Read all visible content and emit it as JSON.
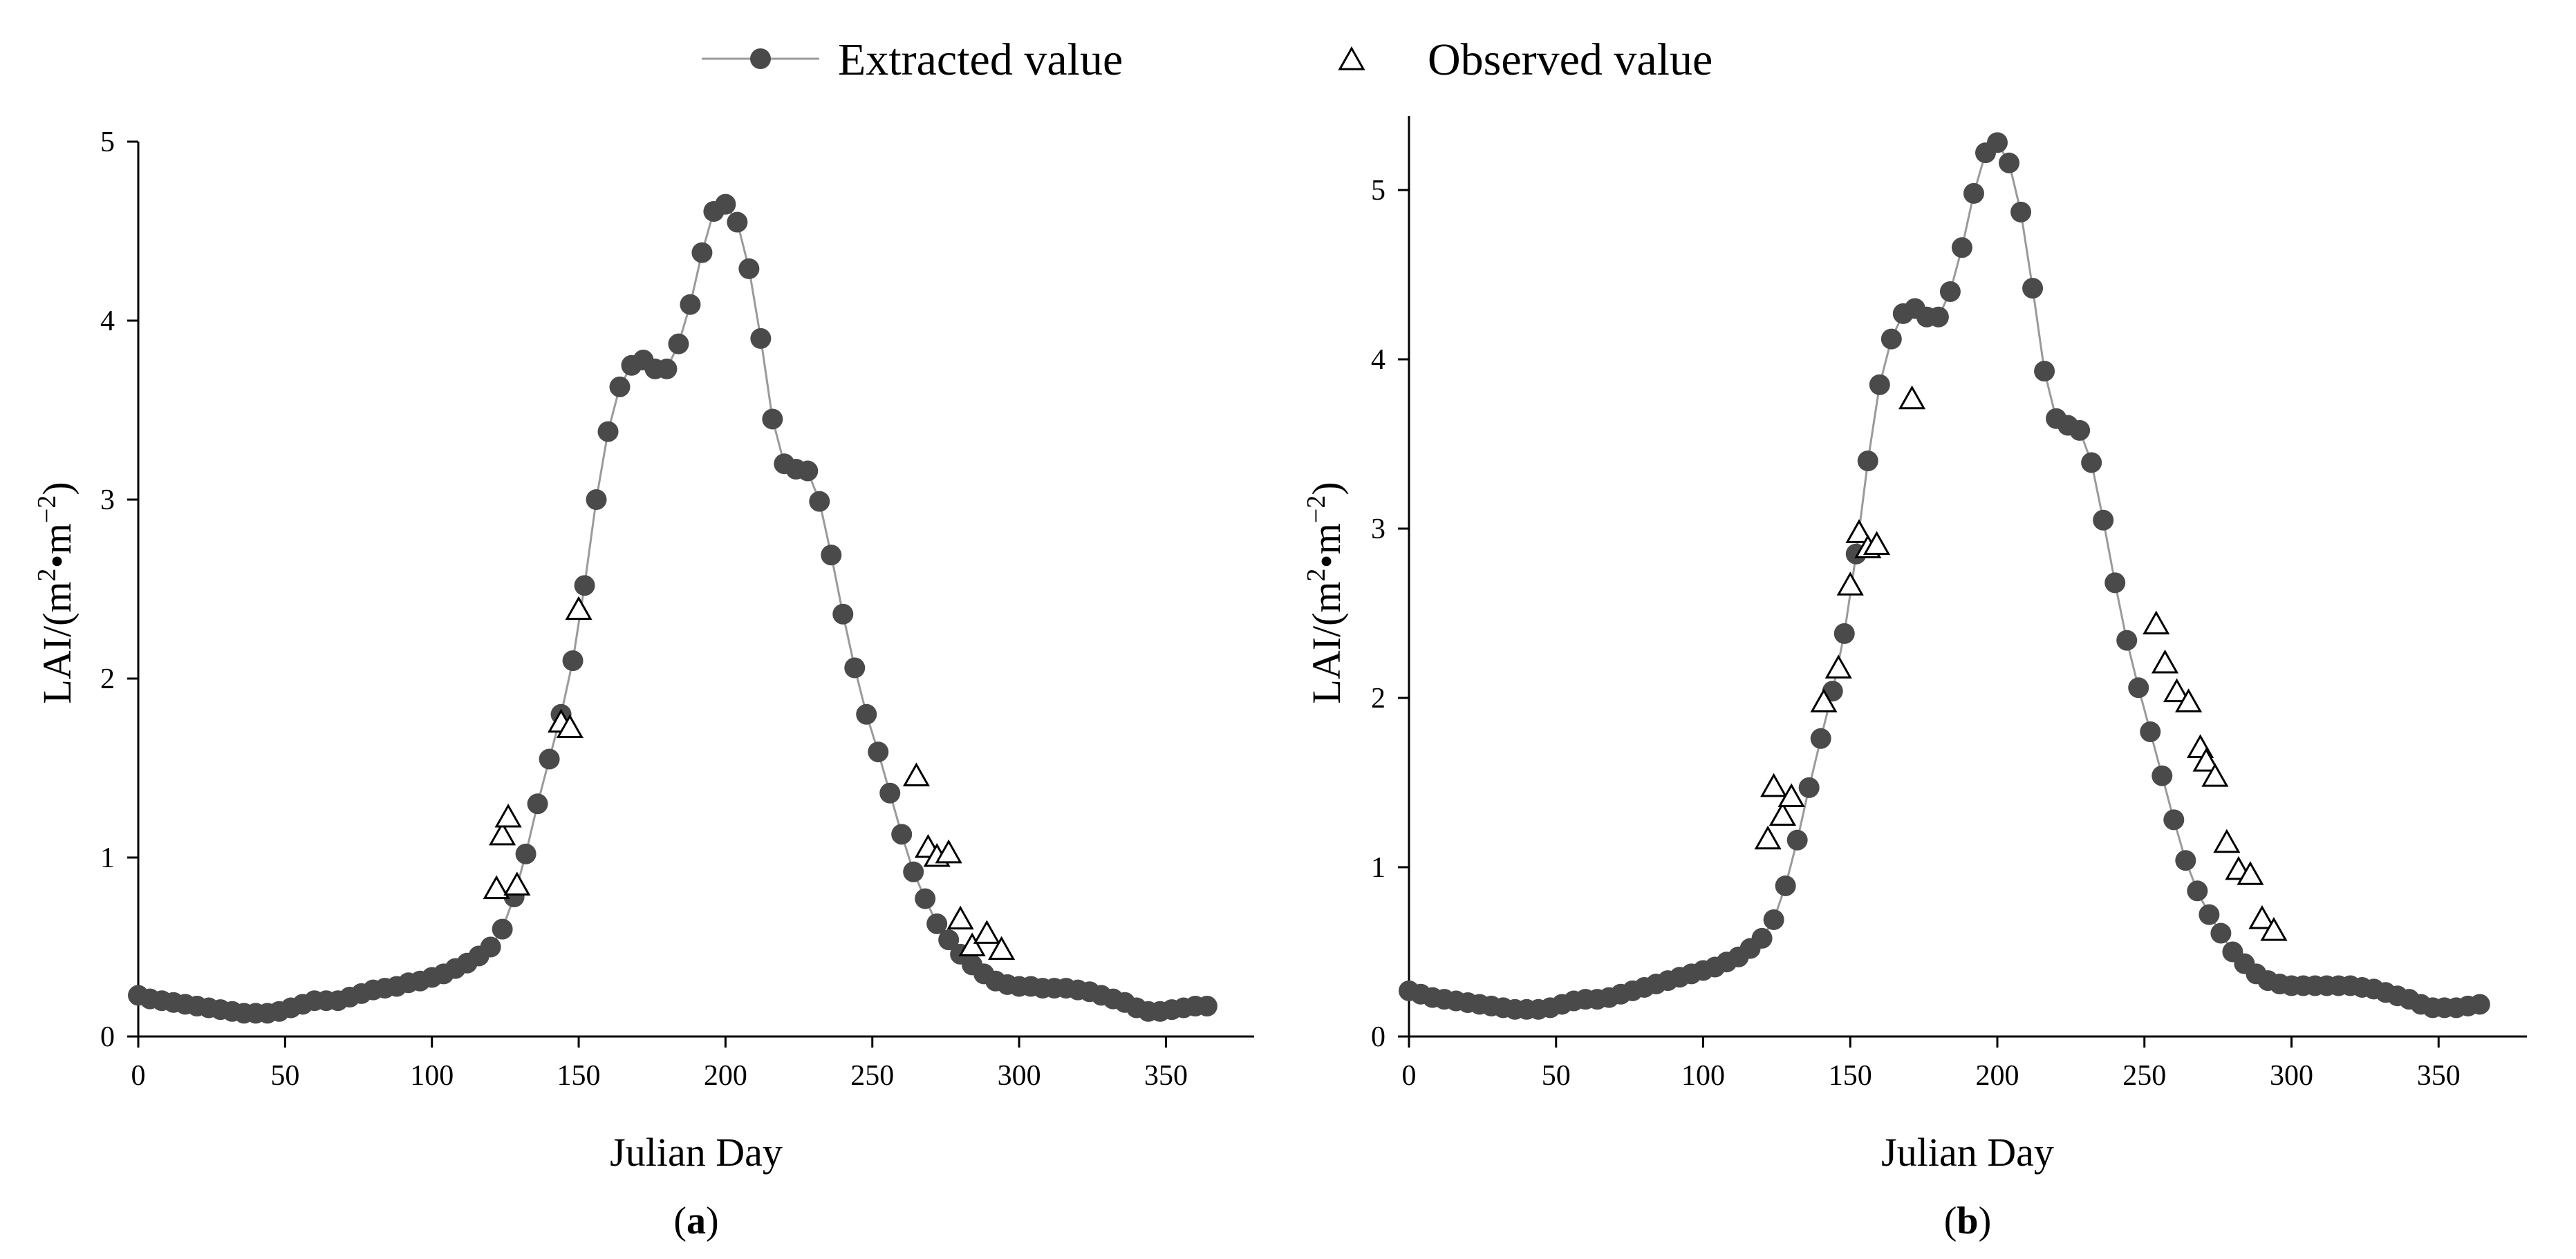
{
  "chart_data": [
    {
      "type": "scatter",
      "panel_label": "a",
      "xlabel": "Julian Day",
      "ylabel": "LAI/(m²•m⁻²)",
      "ylabel_parts": {
        "prefix": "LAI/(m",
        "sup1": "2",
        "mid": "•m",
        "sup2": "−2",
        "suffix": ")"
      },
      "xlim": [
        0,
        380
      ],
      "ylim": [
        0,
        5
      ],
      "xticks": [
        0,
        50,
        100,
        150,
        200,
        250,
        300,
        350
      ],
      "yticks": [
        0,
        1,
        2,
        3,
        4,
        5
      ],
      "legend": [
        "Extracted value",
        "Observed value"
      ],
      "legend_position": "top-center",
      "series": [
        {
          "name": "Extracted value",
          "style": "line-with-filled-circles",
          "x": [
            0,
            4,
            8,
            12,
            16,
            20,
            24,
            28,
            32,
            36,
            40,
            44,
            48,
            52,
            56,
            60,
            64,
            68,
            72,
            76,
            80,
            84,
            88,
            92,
            96,
            100,
            104,
            108,
            112,
            116,
            120,
            124,
            128,
            132,
            136,
            140,
            144,
            148,
            152,
            156,
            160,
            164,
            168,
            172,
            176,
            180,
            184,
            188,
            192,
            196,
            200,
            204,
            208,
            212,
            216,
            220,
            224,
            228,
            232,
            236,
            240,
            244,
            248,
            252,
            256,
            260,
            264,
            268,
            272,
            276,
            280,
            284,
            288,
            292,
            296,
            300,
            304,
            308,
            312,
            316,
            320,
            324,
            328,
            332,
            336,
            340,
            344,
            348,
            352,
            356,
            360,
            364
          ],
          "y": [
            0.23,
            0.21,
            0.2,
            0.19,
            0.18,
            0.17,
            0.16,
            0.15,
            0.14,
            0.13,
            0.13,
            0.13,
            0.14,
            0.16,
            0.18,
            0.2,
            0.2,
            0.2,
            0.22,
            0.24,
            0.26,
            0.27,
            0.28,
            0.3,
            0.31,
            0.33,
            0.35,
            0.38,
            0.41,
            0.45,
            0.5,
            0.6,
            0.78,
            1.02,
            1.3,
            1.55,
            1.8,
            2.1,
            2.52,
            3.0,
            3.38,
            3.63,
            3.75,
            3.78,
            3.73,
            3.73,
            3.87,
            4.09,
            4.38,
            4.61,
            4.65,
            4.55,
            4.29,
            3.9,
            3.45,
            3.2,
            3.17,
            3.16,
            2.99,
            2.69,
            2.36,
            2.06,
            1.8,
            1.59,
            1.36,
            1.13,
            0.92,
            0.77,
            0.63,
            0.54,
            0.46,
            0.4,
            0.35,
            0.31,
            0.29,
            0.28,
            0.28,
            0.27,
            0.27,
            0.27,
            0.26,
            0.25,
            0.23,
            0.21,
            0.19,
            0.16,
            0.14,
            0.14,
            0.15,
            0.16,
            0.17,
            0.17
          ]
        },
        {
          "name": "Observed value",
          "style": "open-triangles",
          "x": [
            122,
            124,
            126,
            129,
            144,
            147,
            150,
            265,
            269,
            272,
            276,
            280,
            284,
            289,
            294
          ],
          "y": [
            0.82,
            1.12,
            1.22,
            0.84,
            1.75,
            1.72,
            2.38,
            1.45,
            1.05,
            1.0,
            1.02,
            0.65,
            0.5,
            0.57,
            0.48
          ]
        }
      ]
    },
    {
      "type": "scatter",
      "panel_label": "b",
      "xlabel": "Julian Day",
      "ylabel": "LAI/(m²•m⁻²)",
      "ylabel_parts": {
        "prefix": "LAI/(m",
        "sup1": "2",
        "mid": "•m",
        "sup2": "−2",
        "suffix": ")"
      },
      "xlim": [
        0,
        380
      ],
      "ylim": [
        0,
        5.5
      ],
      "xticks": [
        0,
        50,
        100,
        150,
        200,
        250,
        300,
        350
      ],
      "yticks": [
        0,
        1,
        2,
        3,
        4,
        5
      ],
      "legend": [
        "Extracted value",
        "Observed value"
      ],
      "legend_position": "top-center",
      "series": [
        {
          "name": "Extracted value",
          "style": "line-with-filled-circles",
          "x": [
            0,
            4,
            8,
            12,
            16,
            20,
            24,
            28,
            32,
            36,
            40,
            44,
            48,
            52,
            56,
            60,
            64,
            68,
            72,
            76,
            80,
            84,
            88,
            92,
            96,
            100,
            104,
            108,
            112,
            116,
            120,
            124,
            128,
            132,
            136,
            140,
            144,
            148,
            152,
            156,
            160,
            164,
            168,
            172,
            176,
            180,
            184,
            188,
            192,
            196,
            200,
            204,
            208,
            212,
            216,
            220,
            224,
            228,
            232,
            236,
            240,
            244,
            248,
            252,
            256,
            260,
            264,
            268,
            272,
            276,
            280,
            284,
            288,
            292,
            296,
            300,
            304,
            308,
            312,
            316,
            320,
            324,
            328,
            332,
            336,
            340,
            344,
            348,
            352,
            356,
            360,
            364
          ],
          "y": [
            0.27,
            0.25,
            0.23,
            0.22,
            0.21,
            0.2,
            0.19,
            0.18,
            0.17,
            0.16,
            0.16,
            0.16,
            0.17,
            0.19,
            0.21,
            0.22,
            0.22,
            0.23,
            0.25,
            0.27,
            0.29,
            0.31,
            0.33,
            0.35,
            0.37,
            0.39,
            0.41,
            0.44,
            0.47,
            0.52,
            0.58,
            0.69,
            0.89,
            1.16,
            1.47,
            1.76,
            2.04,
            2.38,
            2.85,
            3.4,
            3.85,
            4.12,
            4.27,
            4.3,
            4.25,
            4.25,
            4.4,
            4.66,
            4.98,
            5.22,
            5.28,
            5.16,
            4.87,
            4.42,
            3.93,
            3.65,
            3.61,
            3.58,
            3.39,
            3.05,
            2.68,
            2.34,
            2.06,
            1.8,
            1.54,
            1.28,
            1.04,
            0.86,
            0.72,
            0.61,
            0.5,
            0.43,
            0.37,
            0.33,
            0.31,
            0.3,
            0.3,
            0.3,
            0.3,
            0.3,
            0.3,
            0.29,
            0.28,
            0.26,
            0.24,
            0.22,
            0.19,
            0.17,
            0.17,
            0.17,
            0.18,
            0.19
          ]
        },
        {
          "name": "Observed value",
          "style": "open-triangles",
          "x": [
            122,
            124,
            127,
            130,
            141,
            146,
            150,
            153,
            156,
            159,
            171,
            254,
            257,
            261,
            265,
            269,
            271,
            274,
            278,
            282,
            286,
            290,
            294
          ],
          "y": [
            1.16,
            1.47,
            1.3,
            1.41,
            1.97,
            2.17,
            2.66,
            2.97,
            2.88,
            2.9,
            3.76,
            2.43,
            2.2,
            2.03,
            1.97,
            1.7,
            1.62,
            1.53,
            1.14,
            0.98,
            0.95,
            0.69,
            0.62
          ]
        }
      ]
    }
  ]
}
